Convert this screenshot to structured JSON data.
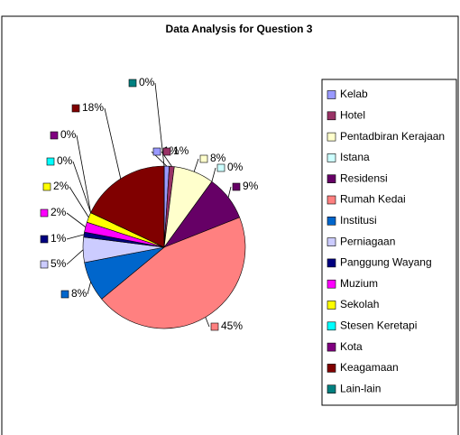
{
  "chart_data": {
    "type": "pie",
    "title": "Data Analysis for Question 3",
    "categories": [
      "Kelab",
      "Hotel",
      "Pentadbiran Kerajaan",
      "Istana",
      "Residensi",
      "Rumah Kedai",
      "Institusi",
      "Perniagaan",
      "Panggung Wayang",
      "Muzium",
      "Sekolah",
      "Stesen Keretapi",
      "Kota",
      "Keagamaan",
      "Lain-lain"
    ],
    "values": [
      1,
      1,
      8,
      0,
      9,
      45,
      8,
      5,
      1,
      2,
      2,
      0,
      0,
      18,
      0
    ],
    "value_labels": [
      "1%",
      "1%",
      "8%",
      "0%",
      "9%",
      "45%",
      "8%",
      "5%",
      "1%",
      "2%",
      "2%",
      "0%",
      "0%",
      "18%",
      "0%"
    ],
    "colors": [
      "#9999FF",
      "#993366",
      "#FFFFCC",
      "#CCFFFF",
      "#660066",
      "#FF8080",
      "#0066CC",
      "#CCCCFF",
      "#000080",
      "#FF00FF",
      "#FFFF00",
      "#00FFFF",
      "#800080",
      "#800000",
      "#008080"
    ],
    "legend": "right"
  }
}
